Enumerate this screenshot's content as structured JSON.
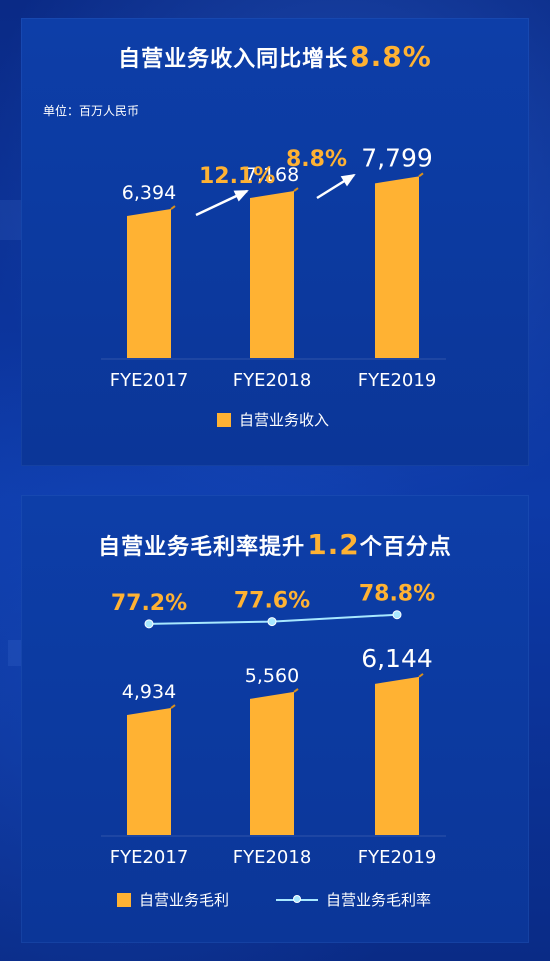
{
  "colors": {
    "bar": "#ffb233",
    "bar_shade": "#d98f1a",
    "highlight": "#ffb233",
    "line": "#a8e8ff",
    "text": "#ffffff"
  },
  "panel1": {
    "title_prefix": "自营业务收入同比增长",
    "title_highlight": "8.8%",
    "unit": "单位：百万人民币",
    "legend": "自营业务收入",
    "growth_labels": [
      "12.1%",
      "8.8%"
    ]
  },
  "panel2": {
    "title_prefix": "自营业务毛利率提升",
    "title_highlight": "1.2",
    "title_suffix": "个百分点",
    "legend_bar": "自营业务毛利",
    "legend_line": "自营业务毛利率"
  },
  "chart_data": [
    {
      "type": "bar",
      "categories": [
        "FYE2017",
        "FYE2018",
        "FYE2019"
      ],
      "values": [
        6394,
        7168,
        7799
      ],
      "value_labels": [
        "6,394",
        "7,168",
        "7,799"
      ],
      "title": "自营业务收入同比增长8.8%",
      "unit": "百万人民币",
      "legend": "自营业务收入",
      "growth_rates": [
        "12.1%",
        "8.8%"
      ],
      "ylim": [
        0,
        8500
      ]
    },
    {
      "type": "bar",
      "categories": [
        "FYE2017",
        "FYE2018",
        "FYE2019"
      ],
      "series": [
        {
          "name": "自营业务毛利",
          "values": [
            4934,
            5560,
            6144
          ],
          "value_labels": [
            "4,934",
            "5,560",
            "6,144"
          ]
        },
        {
          "name": "自营业务毛利率",
          "values": [
            77.2,
            77.6,
            78.8
          ],
          "value_labels": [
            "77.2%",
            "77.6%",
            "78.8%"
          ]
        }
      ],
      "title": "自营业务毛利率提升1.2个百分点",
      "ylim": [
        0,
        6800
      ]
    }
  ]
}
